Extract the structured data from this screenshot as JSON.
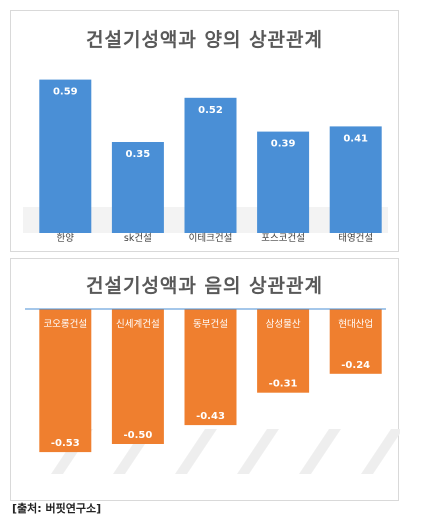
{
  "chart_data": [
    {
      "type": "bar",
      "title": "건설기성액과 양의 상관관계",
      "categories": [
        "한양",
        "sk건설",
        "이테크건설",
        "포스코건설",
        "태영건설"
      ],
      "values": [
        0.59,
        0.35,
        0.52,
        0.39,
        0.41
      ],
      "value_labels": [
        "0.59",
        "0.35",
        "0.52",
        "0.39",
        "0.41"
      ],
      "ylim": [
        0,
        0.7
      ],
      "bar_color": "#4a8fd6",
      "label_color": "#ffffff",
      "grid": false
    },
    {
      "type": "bar",
      "title": "건설기성액과 음의 상관관계",
      "categories": [
        "코오롱건설",
        "신세계건설",
        "동부건설",
        "삼성물산",
        "현대산업"
      ],
      "values": [
        -0.53,
        -0.5,
        -0.43,
        -0.31,
        -0.24
      ],
      "value_labels": [
        "-0.53",
        "-0.50",
        "-0.43",
        "-0.31",
        "-0.24"
      ],
      "ylim": [
        -0.6,
        0
      ],
      "bar_color": "#ef7f2f",
      "label_color": "#ffffff",
      "grid": false
    }
  ],
  "source": "[출처: 버핏연구소]"
}
